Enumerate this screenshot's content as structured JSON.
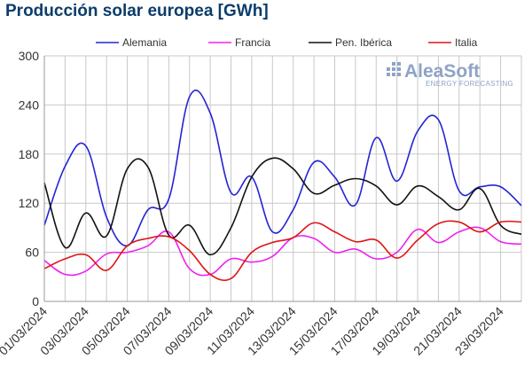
{
  "title": "Producción solar europea [GWh]",
  "logo": {
    "name": "AleaSoft",
    "tagline": "ENERGY FORECASTING",
    "color": "#8fa3c7"
  },
  "chart_data": {
    "type": "line",
    "title": "Producción solar europea [GWh]",
    "xlabel": "",
    "ylabel": "",
    "ylim": [
      0,
      300
    ],
    "yticks": [
      0,
      60,
      120,
      180,
      240,
      300
    ],
    "grid": true,
    "legend_position": "top",
    "x": [
      "01/03/2024",
      "02/03/2024",
      "03/03/2024",
      "04/03/2024",
      "05/03/2024",
      "06/03/2024",
      "07/03/2024",
      "08/03/2024",
      "09/03/2024",
      "10/03/2024",
      "11/03/2024",
      "12/03/2024",
      "13/03/2024",
      "14/03/2024",
      "15/03/2024",
      "16/03/2024",
      "17/03/2024",
      "18/03/2024",
      "19/03/2024",
      "20/03/2024",
      "21/03/2024",
      "22/03/2024",
      "23/03/2024",
      "24/03/2024"
    ],
    "xtick_labels": [
      "01/03/2024",
      "03/03/2024",
      "05/03/2024",
      "07/03/2024",
      "09/03/2024",
      "11/03/2024",
      "13/03/2024",
      "15/03/2024",
      "17/03/2024",
      "19/03/2024",
      "21/03/2024",
      "23/03/2024"
    ],
    "xtick_indices": [
      0,
      2,
      4,
      6,
      8,
      10,
      12,
      14,
      16,
      18,
      20,
      22
    ],
    "series": [
      {
        "name": "Alemania",
        "color": "#2424d6",
        "values": [
          93,
          165,
          190,
          103,
          68,
          112,
          125,
          250,
          230,
          133,
          152,
          85,
          112,
          170,
          152,
          118,
          200,
          147,
          208,
          222,
          135,
          140,
          140,
          117
        ]
      },
      {
        "name": "Francia",
        "color": "#ee22ee",
        "values": [
          50,
          33,
          37,
          58,
          60,
          68,
          85,
          40,
          33,
          52,
          48,
          55,
          78,
          77,
          60,
          64,
          52,
          60,
          88,
          72,
          85,
          90,
          73,
          70
        ]
      },
      {
        "name": "Pen. Ibérica",
        "color": "#111111",
        "values": [
          145,
          66,
          108,
          80,
          162,
          164,
          81,
          93,
          57,
          90,
          152,
          175,
          162,
          132,
          142,
          150,
          141,
          118,
          141,
          128,
          112,
          138,
          93,
          82
        ]
      },
      {
        "name": "Italia",
        "color": "#e01414",
        "values": [
          40,
          52,
          57,
          38,
          68,
          77,
          79,
          62,
          33,
          28,
          60,
          72,
          78,
          96,
          85,
          73,
          75,
          53,
          75,
          95,
          97,
          85,
          97,
          97
        ]
      }
    ]
  }
}
